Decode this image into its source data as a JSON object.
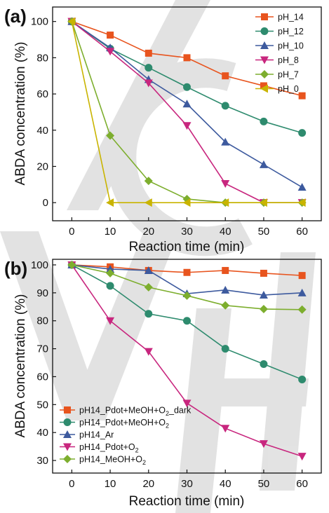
{
  "colors": {
    "orange": "#E8541E",
    "teal": "#2E8B6E",
    "blue": "#3D5A9E",
    "magenta": "#C8267E",
    "green": "#7DAE2E",
    "gold": "#C9B400",
    "watermark": "#d9d9d9"
  },
  "watermark": {
    "text": "VCH"
  },
  "chart_data": [
    {
      "panel_label": "(a)",
      "type": "line",
      "xlabel": "Reaction time (min)",
      "ylabel": "ABDA concentration (%)",
      "xlim": [
        -5,
        65
      ],
      "ylim": [
        -10,
        108
      ],
      "xticks": [
        "0",
        "10",
        "20",
        "30",
        "40",
        "50",
        "60"
      ],
      "yticks": [
        "0",
        "20",
        "40",
        "60",
        "80",
        "100"
      ],
      "x": [
        0,
        10,
        20,
        30,
        40,
        50,
        60
      ],
      "legend_position": "top-right",
      "series": [
        {
          "name": "pH_14",
          "color": "#E8541E",
          "marker": "square",
          "values": [
            100,
            92.5,
            82.5,
            80,
            70,
            64.5,
            59
          ]
        },
        {
          "name": "pH_12",
          "color": "#2E8B6E",
          "marker": "circle",
          "values": [
            100,
            85,
            74.5,
            63.8,
            53.5,
            44.8,
            38.5
          ]
        },
        {
          "name": "pH_10",
          "color": "#3D5A9E",
          "marker": "triangle-up",
          "values": [
            100,
            85.5,
            68,
            54.5,
            33.5,
            21,
            8.5
          ]
        },
        {
          "name": "pH_8",
          "color": "#C8267E",
          "marker": "triangle-down",
          "values": [
            100,
            83.5,
            66,
            42.5,
            10.5,
            0,
            0
          ]
        },
        {
          "name": "pH_7",
          "color": "#7DAE2E",
          "marker": "diamond",
          "values": [
            100,
            37,
            12,
            2,
            0,
            0,
            0
          ]
        },
        {
          "name": "pH_0",
          "color": "#C9B400",
          "marker": "triangle-left",
          "values": [
            100,
            0,
            0,
            0,
            0,
            0,
            0
          ]
        }
      ]
    },
    {
      "panel_label": "(b)",
      "type": "line",
      "xlabel": "Reaction time (min)",
      "ylabel": "ABDA concentration (%)",
      "xlim": [
        -5,
        65
      ],
      "ylim": [
        25.5,
        102
      ],
      "xticks": [
        "0",
        "10",
        "20",
        "30",
        "40",
        "50",
        "60"
      ],
      "yticks": [
        "30",
        "40",
        "50",
        "60",
        "70",
        "80",
        "90",
        "100"
      ],
      "x": [
        0,
        10,
        20,
        30,
        40,
        50,
        60
      ],
      "legend_position": "bottom-left",
      "series": [
        {
          "name": "pH14_Pdot+MeOH+O",
          "sub": "2",
          "tail": "_dark",
          "color": "#E8541E",
          "marker": "square",
          "values": [
            100,
            99.3,
            98,
            97.3,
            98,
            97,
            96.2
          ]
        },
        {
          "name": "pH14_Pdot+MeOH+O",
          "sub": "2",
          "tail": "",
          "color": "#2E8B6E",
          "marker": "circle",
          "values": [
            100,
            92.5,
            82.5,
            80,
            70,
            64.5,
            59
          ]
        },
        {
          "name": "pH14_Ar",
          "sub": "",
          "tail": "",
          "color": "#3D5A9E",
          "marker": "triangle-up",
          "values": [
            100,
            98.5,
            98,
            89.7,
            91,
            89.2,
            90
          ]
        },
        {
          "name": "pH14_Pdot+O",
          "sub": "2",
          "tail": "",
          "color": "#C8267E",
          "marker": "triangle-down",
          "values": [
            100,
            80,
            69,
            50.5,
            41.5,
            36,
            31.5
          ]
        },
        {
          "name": "pH14_MeOH+O",
          "sub": "2",
          "tail": "",
          "color": "#7DAE2E",
          "marker": "diamond",
          "values": [
            100,
            97,
            92,
            89,
            85.5,
            84.2,
            84
          ]
        }
      ]
    }
  ]
}
